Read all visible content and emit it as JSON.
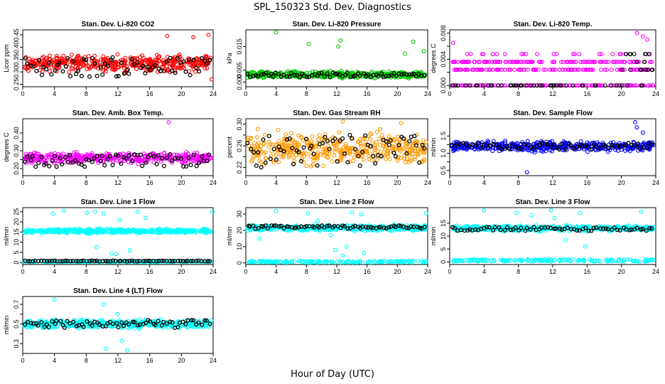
{
  "figure": {
    "title": "SPL_150323  Std. Dev. Diagnostics",
    "xlabel": "Hour of Day (UTC)"
  },
  "chart_data": [
    {
      "type": "scatter",
      "title": "Stan. Dev. Li-820 CO2",
      "ylabel": "Licor ppm",
      "color": "#ff0000",
      "xlim": [
        0,
        24
      ],
      "ylim": [
        0.24,
        0.47
      ],
      "xticks": [
        0,
        4,
        8,
        12,
        16,
        20,
        24
      ],
      "yticks": [
        0.25,
        0.3,
        0.35,
        0.4,
        0.45
      ],
      "yticklabels": [
        "0.25",
        "0.30",
        "0.35",
        "0.40",
        "0.45"
      ],
      "color_band": [
        0.29,
        0.38
      ],
      "black_band": [
        0.28,
        0.36
      ],
      "outliers": [
        [
          18.2,
          0.445
        ],
        [
          21.5,
          0.44
        ],
        [
          23.4,
          0.45
        ],
        [
          23.8,
          0.27
        ]
      ]
    },
    {
      "type": "scatter",
      "title": "Stan. Dev. Li-820 Pressure",
      "ylabel": "kPa",
      "color": "#00cc00",
      "xlim": [
        0,
        24
      ],
      "ylim": [
        -0.002,
        0.022
      ],
      "xticks": [
        0,
        4,
        8,
        12,
        16,
        20,
        24
      ],
      "yticks": [
        0.0,
        0.005,
        0.015
      ],
      "yticklabels": [
        "0.000",
        "0.005",
        "0.015"
      ],
      "color_band": [
        0.001,
        0.005
      ],
      "black_band": [
        0.002,
        0.004
      ],
      "outliers": [
        [
          4.0,
          0.021
        ],
        [
          8.3,
          0.016
        ],
        [
          12.2,
          0.015
        ],
        [
          12.5,
          0.0175
        ],
        [
          22.1,
          0.017
        ],
        [
          21.0,
          0.012
        ],
        [
          23.5,
          0.013
        ]
      ]
    },
    {
      "type": "scatter",
      "title": "Stan. Dev. Li-820 Temp.",
      "ylabel": "degrees C",
      "color": "#ff00ff",
      "xlim": [
        0,
        24
      ],
      "ylim": [
        -0.0002,
        0.0085
      ],
      "xticks": [
        0,
        4,
        8,
        12,
        16,
        20,
        24
      ],
      "yticks": [
        0.0,
        0.002,
        0.004,
        0.006,
        0.008
      ],
      "yticklabels": [
        "0.000",
        "",
        "0.004",
        "",
        "0.008"
      ],
      "levels": [
        0.0,
        0.0024,
        0.0036,
        0.0048
      ],
      "outliers": [
        [
          0.4,
          0.0065
        ],
        [
          21.8,
          0.008
        ],
        [
          22.5,
          0.0075
        ],
        [
          23.0,
          0.007
        ]
      ]
    },
    {
      "type": "scatter",
      "title": "Stan. Dev. Amb. Box Temp.",
      "ylabel": "degrees C",
      "color": "#ff00ff",
      "xlim": [
        0,
        24
      ],
      "ylim": [
        0.16,
        0.48
      ],
      "xticks": [
        0,
        4,
        8,
        12,
        16,
        20,
        24
      ],
      "yticks": [
        0.2,
        0.25,
        0.3,
        0.35,
        0.4
      ],
      "yticklabels": [
        "0.20",
        "",
        "0.30",
        "",
        "0.40"
      ],
      "color_band": [
        0.22,
        0.3
      ],
      "black_band": [
        0.21,
        0.28
      ],
      "outliers": [
        [
          18.4,
          0.46
        ]
      ]
    },
    {
      "type": "scatter",
      "title": "Stan. Dev. Gas Stream RH",
      "ylabel": "percent",
      "color": "#ff9900",
      "xlim": [
        0,
        24
      ],
      "ylim": [
        0.205,
        0.31
      ],
      "xticks": [
        0,
        4,
        8,
        12,
        16,
        20,
        24
      ],
      "yticks": [
        0.22,
        0.24,
        0.26,
        0.28,
        0.3
      ],
      "yticklabels": [
        "0.22",
        "",
        "0.26",
        "",
        "0.30"
      ],
      "color_band": [
        0.215,
        0.295
      ],
      "black_band": [
        0.22,
        0.28
      ],
      "outliers": [
        [
          12.8,
          0.305
        ],
        [
          20.5,
          0.302
        ]
      ]
    },
    {
      "type": "scatter",
      "title": "Stan. Dev. Sample Flow",
      "ylabel": "ml/min",
      "color": "#0000ff",
      "xlim": [
        0,
        24
      ],
      "ylim": [
        0.35,
        2.0
      ],
      "xticks": [
        0,
        4,
        8,
        12,
        16,
        20,
        24
      ],
      "yticks": [
        0.5,
        0.75,
        1.0,
        1.25,
        1.5
      ],
      "yticklabels": [
        "0.5",
        "",
        "1.0",
        "",
        "1.5"
      ],
      "color_band": [
        1.0,
        1.4
      ],
      "black_band": [
        1.1,
        1.3
      ],
      "outliers": [
        [
          9.0,
          0.45
        ],
        [
          21.6,
          1.9
        ],
        [
          21.8,
          1.75
        ],
        [
          22.5,
          1.6
        ]
      ]
    },
    {
      "type": "scatter",
      "title": "Stan. Dev. Line 1 Flow",
      "ylabel": "ml/min",
      "color": "#00ffff",
      "xlim": [
        0,
        24
      ],
      "ylim": [
        -1,
        27
      ],
      "xticks": [
        0,
        4,
        8,
        12,
        16,
        20,
        24
      ],
      "yticks": [
        0,
        5,
        10,
        15,
        20,
        25
      ],
      "yticklabels": [
        "0",
        "5",
        "10",
        "15",
        "20",
        "25"
      ],
      "color_band": [
        14,
        17
      ],
      "black_band": [
        0.6,
        0.9
      ],
      "low_band": [
        0.2,
        0.6
      ],
      "outliers": [
        [
          3.8,
          24
        ],
        [
          5.2,
          25.5
        ],
        [
          8.1,
          24.5
        ],
        [
          9.1,
          25
        ],
        [
          9.3,
          7.5
        ],
        [
          10.2,
          24
        ],
        [
          11.2,
          4.5
        ],
        [
          11.8,
          4.2
        ],
        [
          12.2,
          21
        ],
        [
          13.5,
          6
        ],
        [
          14.5,
          25
        ],
        [
          15.5,
          22
        ],
        [
          23.9,
          25
        ]
      ]
    },
    {
      "type": "scatter",
      "title": "Stan. Dev. Line 2 Flow",
      "ylabel": "ml/min",
      "color": "#00ffff",
      "xlim": [
        0,
        24
      ],
      "ylim": [
        -1,
        34
      ],
      "xticks": [
        0,
        4,
        8,
        12,
        16,
        20,
        24
      ],
      "yticks": [
        0,
        10,
        20,
        30
      ],
      "yticklabels": [
        "0",
        "10",
        "20",
        "30"
      ],
      "color_band": [
        19,
        24
      ],
      "black_band": [
        21,
        23
      ],
      "low_band": [
        0.2,
        1.2
      ],
      "outliers": [
        [
          1.8,
          15
        ],
        [
          4.0,
          32
        ],
        [
          8.2,
          30.5
        ],
        [
          9.5,
          26
        ],
        [
          11.2,
          17
        ],
        [
          11.8,
          8
        ],
        [
          12.8,
          4.5
        ],
        [
          13.3,
          10
        ],
        [
          14.0,
          31
        ],
        [
          15.2,
          30
        ],
        [
          15.6,
          6
        ],
        [
          23.8,
          30.5
        ]
      ]
    },
    {
      "type": "scatter",
      "title": "Stan. Dev. Line 3 Flow",
      "ylabel": "ml/min",
      "color": "#00ffff",
      "xlim": [
        0,
        24
      ],
      "ylim": [
        -1,
        21
      ],
      "xticks": [
        0,
        4,
        8,
        12,
        16,
        20,
        24
      ],
      "yticks": [
        0,
        5,
        10,
        15
      ],
      "yticklabels": [
        "0",
        "5",
        "10",
        "15"
      ],
      "color_band": [
        11.5,
        14.5
      ],
      "black_band": [
        12,
        13.5
      ],
      "low_band": [
        0.2,
        1.0
      ],
      "outliers": [
        [
          4.0,
          20
        ],
        [
          7.8,
          19
        ],
        [
          9.5,
          18
        ],
        [
          11.8,
          20
        ],
        [
          12.2,
          17
        ],
        [
          13.5,
          8.5
        ],
        [
          15.2,
          19
        ],
        [
          15.8,
          6
        ],
        [
          22.3,
          19.5
        ]
      ]
    },
    {
      "type": "scatter",
      "title": "Stan. Dev. Line 4 (LT) Flow",
      "ylabel": "ml/min",
      "color": "#00ffff",
      "xlim": [
        0,
        24
      ],
      "ylim": [
        0.2,
        0.78
      ],
      "xticks": [
        0,
        4,
        8,
        12,
        16,
        20,
        24
      ],
      "yticks": [
        0.3,
        0.4,
        0.5,
        0.6,
        0.7
      ],
      "yticklabels": [
        "0.3",
        "",
        "0.5",
        "",
        "0.7"
      ],
      "color_band": [
        0.44,
        0.56
      ],
      "black_band": [
        0.46,
        0.54
      ],
      "outliers": [
        [
          4.0,
          0.75
        ],
        [
          10.2,
          0.7
        ],
        [
          12.0,
          0.6
        ],
        [
          10.5,
          0.25
        ],
        [
          13.2,
          0.23
        ],
        [
          12.5,
          0.33
        ]
      ]
    }
  ]
}
